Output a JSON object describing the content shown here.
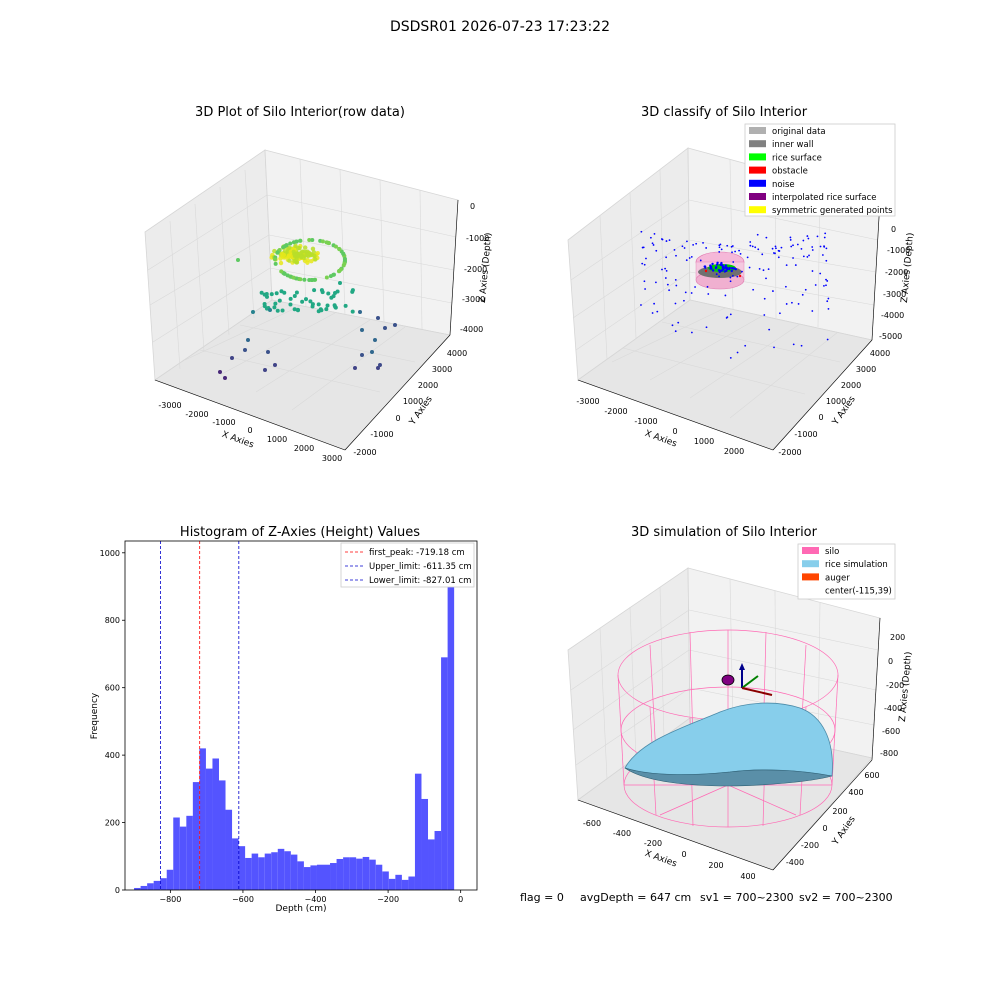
{
  "suptitle": "DSDSR01 2026-07-23 17:23:22",
  "footer": {
    "flag": "flag = 0",
    "avg_depth": "avgDepth = 647 cm",
    "sv1": "sv1 = 700~2300",
    "sv2": "sv2 = 700~2300"
  },
  "chart_data": [
    {
      "type": "scatter",
      "title": "3D Plot of Silo Interior(row data)",
      "xlabel": "X Axies",
      "ylabel": "Y Axies",
      "zlabel": "Z Axies (Depth)",
      "x_ticks": [
        "-3000",
        "-2000",
        "-1000",
        "0",
        "1000",
        "2000",
        "3000"
      ],
      "y_ticks": [
        "-2000",
        "-1000",
        "0",
        "1000",
        "2000",
        "3000",
        "4000"
      ],
      "z_ticks": [
        "0",
        "-1000",
        "-2000",
        "-3000",
        "-4000"
      ],
      "colormap": "viridis"
    },
    {
      "type": "scatter",
      "title": "3D classify of Silo Interior",
      "xlabel": "X Axies",
      "ylabel": "Y Axies",
      "zlabel": "Z Axies (Depth)",
      "x_ticks": [
        "-3000",
        "-2000",
        "-1000",
        "0",
        "1000",
        "2000"
      ],
      "y_ticks": [
        "-2000",
        "-1000",
        "0",
        "1000",
        "2000",
        "3000",
        "4000"
      ],
      "z_ticks": [
        "0",
        "-1000",
        "-2000",
        "-3000",
        "-4000",
        "-5000"
      ],
      "legend": [
        {
          "label": "original data",
          "color": "#b0b0b0"
        },
        {
          "label": "inner wall",
          "color": "#808080"
        },
        {
          "label": "rice surface",
          "color": "#00ff00"
        },
        {
          "label": "obstacle",
          "color": "#ff0000"
        },
        {
          "label": "noise",
          "color": "#0000ff"
        },
        {
          "label": "interpolated rice surface",
          "color": "#800080"
        },
        {
          "label": "symmetric generated points",
          "color": "#ffff00"
        }
      ],
      "legend_position": "top-right"
    },
    {
      "type": "bar",
      "title": "Histogram of Z-Axies (Height) Values",
      "xlabel": "Depth (cm)",
      "ylabel": "Frequency",
      "xlim": [
        -925,
        45
      ],
      "ylim": [
        0,
        1035
      ],
      "x_ticks": [
        "−800",
        "−600",
        "−400",
        "−200",
        "0"
      ],
      "y_ticks": [
        "0",
        "200",
        "400",
        "600",
        "800",
        "1000"
      ],
      "bin_start": -900,
      "bin_width": 18,
      "values": [
        6,
        12,
        20,
        27,
        35,
        60,
        215,
        188,
        220,
        320,
        420,
        360,
        390,
        325,
        238,
        153,
        130,
        95,
        108,
        97,
        108,
        112,
        122,
        115,
        105,
        85,
        68,
        73,
        75,
        75,
        80,
        92,
        97,
        97,
        93,
        98,
        90,
        75,
        55,
        33,
        45,
        30,
        40,
        345,
        270,
        150,
        175,
        690,
        980
      ],
      "bar_color": "#4b4bff",
      "lines": [
        {
          "label": "first_peak: -719.18 cm",
          "x": -719.18,
          "color": "#ff0000"
        },
        {
          "label": "Upper_limit: -611.35 cm",
          "x": -611.35,
          "color": "#0000cc"
        },
        {
          "label": "Lower_limit: -827.01 cm",
          "x": -827.01,
          "color": "#0000cc"
        }
      ],
      "legend_position": "top-right"
    },
    {
      "type": "surface",
      "title": "3D simulation of Silo Interior",
      "xlabel": "X Axies",
      "ylabel": "Y Axies",
      "zlabel": "Z Axies (Depth)",
      "x_ticks": [
        "-600",
        "-400",
        "-200",
        "0",
        "200",
        "400"
      ],
      "y_ticks": [
        "-400",
        "-200",
        "0",
        "200",
        "400",
        "600"
      ],
      "z_ticks": [
        "200",
        "0",
        "-200",
        "-400",
        "-600",
        "-800"
      ],
      "legend": [
        {
          "label": "silo",
          "color": "#ff69b4"
        },
        {
          "label": "rice simulation",
          "color": "#87ceeb"
        },
        {
          "label": "auger",
          "color": "#ff4500"
        },
        {
          "label": "center(-115,39)",
          "color": ""
        }
      ],
      "legend_position": "top-right"
    }
  ]
}
